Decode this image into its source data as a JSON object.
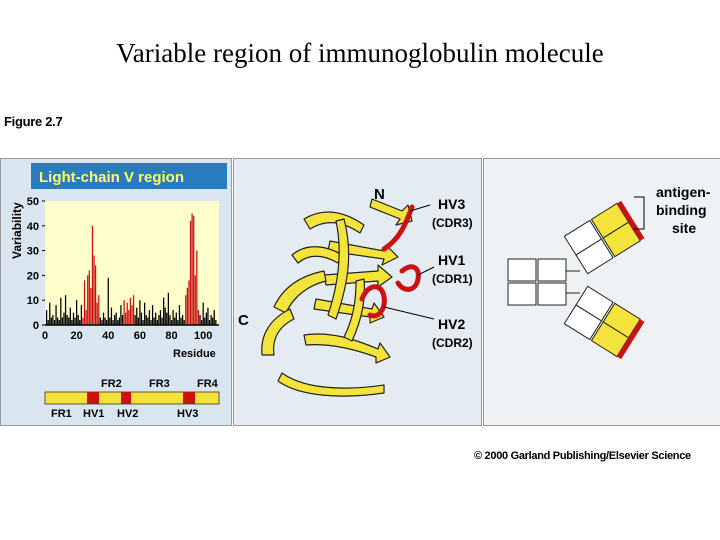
{
  "slide": {
    "title": "Variable region of immunoglobulin molecule",
    "figure_label": "Figure 2.7",
    "copyright": "© 2000 Garland Publishing/Elsevier Science"
  },
  "panel_a": {
    "header": "Light-chain V region",
    "ylabel": "Variability",
    "xlabel": "Residue",
    "y_ticks": [
      "0",
      "10",
      "20",
      "30",
      "40",
      "50"
    ],
    "x_ticks": [
      "0",
      "20",
      "40",
      "60",
      "80",
      "100"
    ],
    "colors": {
      "header_bg": "#2b7bbf",
      "header_text": "#ffff66",
      "plot_bg": "#ffffcc",
      "bar": "#000000",
      "hv_bar": "#cc1111"
    },
    "map_top_labels": [
      "FR2",
      "FR3",
      "FR4"
    ],
    "map_bottom_labels": [
      "FR1",
      "HV1",
      "HV2",
      "HV3"
    ],
    "map_colors": {
      "fr": "#f3e33a",
      "hv": "#cc1111"
    }
  },
  "chart_data": {
    "type": "bar",
    "xlabel": "Residue",
    "ylabel": "Variability",
    "xlim": [
      0,
      110
    ],
    "ylim": [
      0,
      50
    ],
    "x": [
      1,
      2,
      3,
      4,
      5,
      6,
      7,
      8,
      9,
      10,
      11,
      12,
      13,
      14,
      15,
      16,
      17,
      18,
      19,
      20,
      21,
      22,
      23,
      24,
      25,
      26,
      27,
      28,
      29,
      30,
      31,
      32,
      33,
      34,
      35,
      36,
      37,
      38,
      39,
      40,
      41,
      42,
      43,
      44,
      45,
      46,
      47,
      48,
      49,
      50,
      51,
      52,
      53,
      54,
      55,
      56,
      57,
      58,
      59,
      60,
      61,
      62,
      63,
      64,
      65,
      66,
      67,
      68,
      69,
      70,
      71,
      72,
      73,
      74,
      75,
      76,
      77,
      78,
      79,
      80,
      81,
      82,
      83,
      84,
      85,
      86,
      87,
      88,
      89,
      90,
      91,
      92,
      93,
      94,
      95,
      96,
      97,
      98,
      99,
      100,
      101,
      102,
      103,
      104,
      105,
      106,
      107,
      108
    ],
    "values": [
      6,
      2,
      9,
      3,
      4,
      2,
      8,
      3,
      2,
      11,
      3,
      5,
      12,
      4,
      3,
      7,
      2,
      5,
      3,
      10,
      4,
      2,
      8,
      3,
      18,
      6,
      20,
      22,
      15,
      40,
      28,
      24,
      9,
      12,
      3,
      2,
      5,
      3,
      2,
      19,
      3,
      7,
      2,
      4,
      5,
      2,
      3,
      8,
      4,
      10,
      5,
      9,
      6,
      11,
      8,
      12,
      4,
      7,
      3,
      10,
      5,
      2,
      9,
      4,
      3,
      6,
      2,
      8,
      3,
      5,
      2,
      4,
      6,
      3,
      11,
      7,
      5,
      13,
      4,
      2,
      6,
      3,
      5,
      2,
      8,
      3,
      4,
      2,
      12,
      15,
      18,
      42,
      45,
      44,
      20,
      30,
      6,
      4,
      2,
      9,
      3,
      5,
      7,
      2,
      4,
      3,
      6,
      2
    ],
    "highlight_ranges": [
      [
        24,
        34
      ],
      [
        50,
        56
      ],
      [
        89,
        97
      ]
    ],
    "highlight_color": "#cc1111"
  },
  "panel_b": {
    "labels": {
      "n": "N",
      "c": "C",
      "hv3": "HV3",
      "cdr3": "(CDR3)",
      "hv1": "HV1",
      "cdr1": "(CDR1)",
      "hv2": "HV2",
      "cdr2": "(CDR2)"
    },
    "colors": {
      "strand": "#f3e33a",
      "outline": "#222222",
      "loop": "#cc1111"
    }
  },
  "panel_c": {
    "labels": {
      "antigen": "antigen-",
      "binding": "binding",
      "site": "site"
    },
    "colors": {
      "fill": "#ffffff",
      "variable": "#f3e33a",
      "tip": "#cc1111"
    }
  }
}
